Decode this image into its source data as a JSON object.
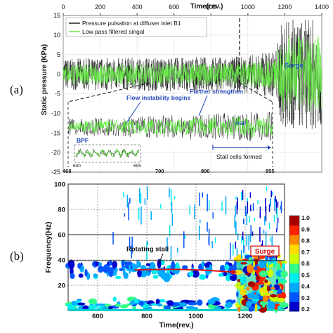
{
  "panel_labels": {
    "a": "(a)",
    "b": "(b)"
  },
  "chart_data": [
    {
      "type": "line",
      "panel": "(a)",
      "xlabel": "Time(rev.)",
      "ylabel": "Static pressure (KPa)",
      "xlim": [
        0,
        1400
      ],
      "ylim": [
        -25,
        15
      ],
      "x_ticks": [
        "0",
        "200",
        "400",
        "600",
        "800",
        "1000",
        "1200",
        "1400"
      ],
      "y_ticks": [
        "15",
        "10",
        "5",
        "0",
        "-5",
        "-10",
        "-15",
        "-20",
        "-25"
      ],
      "legend_position": "top-left",
      "series": [
        {
          "name": "Pressure pulsation at diffuser inlet  B1",
          "color": "#222222",
          "amplitude_kpa": [
            [
              0,
              4
            ],
            [
              940,
              4.5
            ],
            [
              1150,
              6
            ],
            [
              1185,
              14
            ]
          ]
        },
        {
          "name": "Low pass filtered singal",
          "color": "#66ee44",
          "amplitude_kpa": [
            [
              0,
              2.5
            ],
            [
              940,
              3
            ],
            [
              1150,
              4
            ],
            [
              1185,
              10
            ]
          ]
        }
      ],
      "annotations": {
        "surge": "Surge",
        "surge_onset_rev": 1185,
        "marker_rev": 955
      },
      "inset": {
        "x_ticks": [
          "468",
          "700",
          "800",
          "955"
        ],
        "ticks_rev": [
          468,
          700,
          800,
          955
        ],
        "labels": {
          "flow_instability": "Flow instability begins",
          "further_strengthen": "Further strengthen",
          "bpf": "BPF",
          "rsf": "RSF",
          "stall_cells": "Stall cells formed"
        },
        "stall_cells_from_rev": 800,
        "sub_inset": {
          "x_ticks": [
            "600",
            "605"
          ]
        }
      },
      "grid": true
    },
    {
      "type": "heatmap",
      "panel": "(b)",
      "xlabel": "Time(rev.)",
      "ylabel": "Frequency(Hz)",
      "xlim": [
        480,
        1360
      ],
      "ylim": [
        0,
        100
      ],
      "x_ticks": [
        "600",
        "800",
        "1000",
        "1200"
      ],
      "x_tick_values": [
        600,
        800,
        1000,
        1200
      ],
      "y_ticks": [
        "20",
        "40",
        "60",
        "80",
        "100"
      ],
      "y_tick_values": [
        20,
        40,
        60,
        80,
        100
      ],
      "reference_frequencies_hz": [
        39.5,
        60
      ],
      "colorbar": {
        "ticks": [
          "1.0",
          "0.9",
          "0.8",
          "0.7",
          "0.6",
          "0.5",
          "0.4",
          "0.3",
          "0.2"
        ],
        "colors": [
          "#0000cc",
          "#0055ff",
          "#00aaff",
          "#00eeee",
          "#33ff88",
          "#ccff00",
          "#ffdd00",
          "#ff8800",
          "#ff2200",
          "#aa0000"
        ]
      },
      "annotations": {
        "rotating_stall": "Rotating stall",
        "rotating_stall_band_hz": 32,
        "rotating_stall_from_rev": 750,
        "rotating_stall_to_rev": 1150,
        "surge": "Surge",
        "surge_onset_rev": 1165
      },
      "grid": true
    }
  ]
}
